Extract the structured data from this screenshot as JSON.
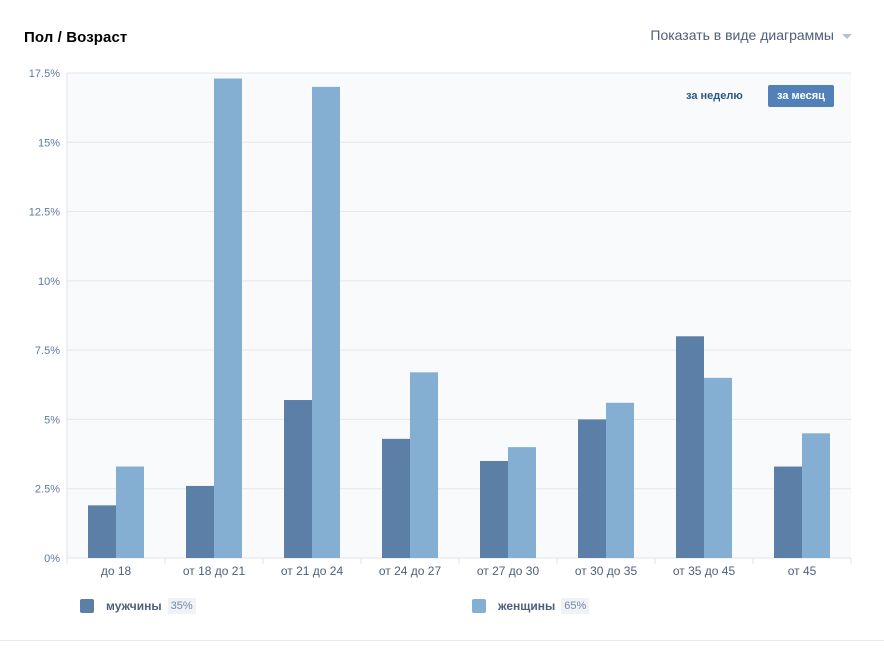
{
  "header": {
    "title": "Пол / Возраст",
    "view_toggle_label": "Показать в виде диаграммы"
  },
  "period": {
    "week_label": "за неделю",
    "month_label": "за месяц",
    "active": "month"
  },
  "legend": {
    "men_label": "мужчины",
    "men_pct": "35%",
    "women_label": "женщины",
    "women_pct": "65%"
  },
  "colors": {
    "men": "#5b7fa6",
    "women": "#84aed2",
    "grid": "#e4e6ea",
    "plot_bg": "#f9fafb",
    "tick_text": "#5d7aa0"
  },
  "chart_data": {
    "type": "bar",
    "categories": [
      "до 18",
      "от 18 до 21",
      "от 21 до 24",
      "от 24 до 27",
      "от 27 до 30",
      "от 30 до 35",
      "от 35 до 45",
      "от 45"
    ],
    "series": [
      {
        "name": "мужчины",
        "values": [
          1.9,
          2.6,
          5.7,
          4.3,
          3.5,
          5.0,
          8.0,
          3.3
        ]
      },
      {
        "name": "женщины",
        "values": [
          3.3,
          17.3,
          17.0,
          6.7,
          4.0,
          5.6,
          6.5,
          4.5
        ]
      }
    ],
    "yticks": [
      "0%",
      "2.5%",
      "5%",
      "7.5%",
      "10%",
      "12.5%",
      "15%",
      "17.5%"
    ],
    "ylim": [
      0,
      17.5
    ],
    "title": "Пол / Возраст",
    "xlabel": "",
    "ylabel": "",
    "grid": true,
    "legend_position": "bottom"
  }
}
